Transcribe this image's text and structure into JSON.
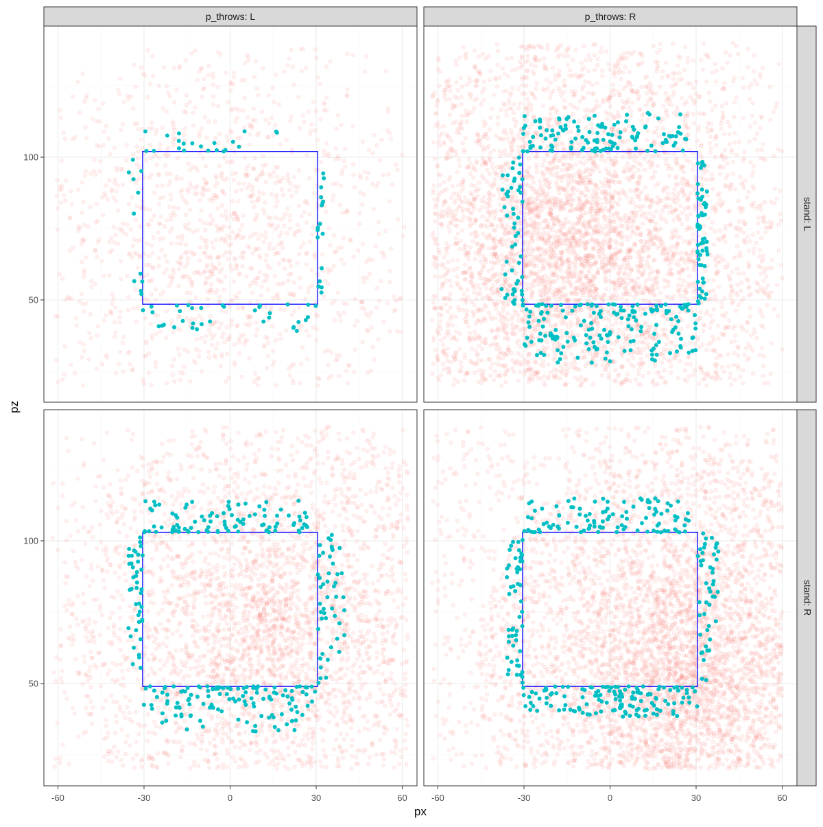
{
  "chart_data": {
    "type": "scatter",
    "layout": "facet_grid",
    "xlabel": "px",
    "ylabel": "pz",
    "xlim": [
      -65,
      65
    ],
    "ylim": [
      11,
      149
    ],
    "x_ticks": [
      -60,
      -30,
      0,
      30,
      60
    ],
    "y_ticks": [
      50,
      100
    ],
    "x_tick_labels": [
      "-60",
      "-30",
      "0",
      "30",
      "60"
    ],
    "y_tick_labels": [
      "50",
      "100"
    ],
    "columns": [
      "p_throws: L",
      "p_throws: R"
    ],
    "rows": [
      "stand: L",
      "stand: R"
    ],
    "grid": true,
    "colors": {
      "background_points": "#F8766D",
      "edge_points": "#00BFC4",
      "strike_zone": "#0000FF",
      "strip_fill": "#D9D9D9",
      "panel_border": "#333333",
      "grid_major": "#EBEBEB",
      "grid_minor": "#F5F5F5"
    },
    "panels": [
      {
        "col": "p_throws: L",
        "row": "stand: L",
        "strike_zone": {
          "x": [
            -30.5,
            30.5
          ],
          "z": [
            48.5,
            102
          ]
        },
        "background": {
          "count": 1400,
          "x_range": [
            -61,
            61
          ],
          "z_range": [
            20,
            138
          ],
          "density_center": [
            -5,
            68
          ]
        },
        "edge_points": {
          "count": 85,
          "top_band": [
            102,
            110
          ],
          "bottom_band": [
            39,
            48.5
          ],
          "left_band": [
            -36,
            -30.5
          ],
          "right_band": [
            30.5,
            33
          ]
        }
      },
      {
        "col": "p_throws: R",
        "row": "stand: L",
        "strike_zone": {
          "x": [
            -30.5,
            30.5
          ],
          "z": [
            48.5,
            102
          ]
        },
        "background": {
          "count": 4800,
          "x_range": [
            -62,
            60
          ],
          "z_range": [
            20,
            140
          ],
          "density_center": [
            -15,
            65
          ]
        },
        "edge_points": {
          "count": 400,
          "top_band": [
            102,
            116
          ],
          "bottom_band": [
            28,
            48.5
          ],
          "left_band": [
            -38,
            -30.5
          ],
          "right_band": [
            30.5,
            34
          ]
        }
      },
      {
        "col": "p_throws: L",
        "row": "stand: R",
        "strike_zone": {
          "x": [
            -30.5,
            30.5
          ],
          "z": [
            49,
            103
          ]
        },
        "background": {
          "count": 3300,
          "x_range": [
            -62,
            62
          ],
          "z_range": [
            20,
            140
          ],
          "density_center": [
            15,
            70
          ]
        },
        "edge_points": {
          "count": 310,
          "top_band": [
            103,
            114
          ],
          "bottom_band": [
            33,
            49
          ],
          "left_band": [
            -36,
            -30.5
          ],
          "right_band": [
            30.5,
            40
          ]
        }
      },
      {
        "col": "p_throws: R",
        "row": "stand: R",
        "strike_zone": {
          "x": [
            -30.5,
            30.5
          ],
          "z": [
            49,
            103
          ]
        },
        "background": {
          "count": 5200,
          "x_range": [
            -62,
            60
          ],
          "z_range": [
            20,
            140
          ],
          "density_center": [
            25,
            55
          ]
        },
        "edge_points": {
          "count": 340,
          "top_band": [
            103,
            115
          ],
          "bottom_band": [
            38,
            49
          ],
          "left_band": [
            -36,
            -30.5
          ],
          "right_band": [
            30.5,
            38
          ]
        }
      }
    ]
  }
}
